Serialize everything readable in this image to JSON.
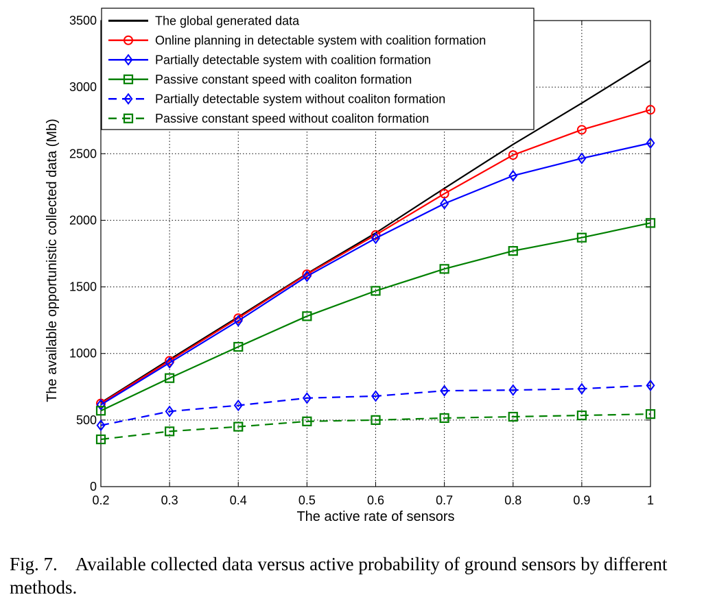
{
  "caption": {
    "label": "Fig. 7.",
    "text": "Available collected data versus active probability of ground sensors by different methods."
  },
  "chart_data": {
    "type": "line",
    "title": "",
    "xlabel": "The active rate of sensors",
    "ylabel": "The available opportunistic collected data (Mb)",
    "xlim": [
      0.2,
      1
    ],
    "ylim": [
      0,
      3500
    ],
    "xticks": [
      "0.2",
      "0.3",
      "0.4",
      "0.5",
      "0.6",
      "0.7",
      "0.8",
      "0.9",
      "1"
    ],
    "yticks": [
      "0",
      "500",
      "1000",
      "1500",
      "2000",
      "2500",
      "3000",
      "3500"
    ],
    "grid": true,
    "legend_position": "top-left",
    "x": [
      0.2,
      0.3,
      0.4,
      0.5,
      0.6,
      0.7,
      0.8,
      0.9,
      1
    ],
    "series": [
      {
        "name": "The global generated data",
        "color": "#000000",
        "dash": "solid",
        "marker": "none",
        "values": [
          630,
          955,
          1275,
          1600,
          1905,
          2240,
          2570,
          2880,
          3200
        ]
      },
      {
        "name": "Online planning in detectable system with coalition formation",
        "color": "#ff0000",
        "dash": "solid",
        "marker": "circle",
        "values": [
          625,
          945,
          1265,
          1595,
          1890,
          2200,
          2490,
          2680,
          2830
        ]
      },
      {
        "name": "Partially detectable system with coalition formation",
        "color": "#0000ff",
        "dash": "solid",
        "marker": "diamond",
        "values": [
          615,
          930,
          1245,
          1580,
          1865,
          2125,
          2335,
          2465,
          2580
        ]
      },
      {
        "name": "Passive constant speed with coaliton formation",
        "color": "#008000",
        "dash": "solid",
        "marker": "square",
        "values": [
          570,
          815,
          1050,
          1280,
          1470,
          1635,
          1770,
          1870,
          1980
        ]
      },
      {
        "name": "Partially detectable system without coaliton formation",
        "color": "#0000ff",
        "dash": "dashed",
        "marker": "diamond",
        "values": [
          460,
          565,
          610,
          665,
          680,
          720,
          725,
          735,
          760
        ]
      },
      {
        "name": "Passive constant speed without coaliton formation",
        "color": "#008000",
        "dash": "dashed",
        "marker": "square",
        "values": [
          355,
          415,
          450,
          490,
          500,
          515,
          525,
          535,
          545
        ]
      }
    ]
  }
}
